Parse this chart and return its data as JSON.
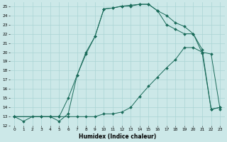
{
  "xlabel": "Humidex (Indice chaleur)",
  "bg_color": "#cce8e8",
  "grid_color": "#aad4d4",
  "line_color": "#1a6b5a",
  "xlim": [
    -0.5,
    23.5
  ],
  "ylim": [
    12,
    25.4
  ],
  "xticks": [
    0,
    1,
    2,
    3,
    4,
    5,
    6,
    7,
    8,
    9,
    10,
    11,
    12,
    13,
    14,
    15,
    16,
    17,
    18,
    19,
    20,
    21,
    22,
    23
  ],
  "yticks": [
    12,
    13,
    14,
    15,
    16,
    17,
    18,
    19,
    20,
    21,
    22,
    23,
    24,
    25
  ],
  "curve1_x": [
    0,
    1,
    2,
    3,
    4,
    5,
    6,
    7,
    8,
    9,
    10,
    11,
    12,
    13,
    14,
    15,
    16,
    17,
    18,
    19,
    20,
    21,
    22,
    23
  ],
  "curve1_y": [
    13,
    12.5,
    13,
    13,
    13,
    12.5,
    13.3,
    17.5,
    20.0,
    21.7,
    24.7,
    24.8,
    25.0,
    25.0,
    25.2,
    25.2,
    24.5,
    24.0,
    23.2,
    22.8,
    22.0,
    20.3,
    13.8,
    14.0
  ],
  "curve2_x": [
    0,
    3,
    4,
    5,
    6,
    7,
    8,
    9,
    10,
    11,
    12,
    13,
    14,
    15,
    16,
    17,
    18,
    19,
    20,
    21,
    22,
    23
  ],
  "curve2_y": [
    13,
    13,
    13,
    13,
    15.0,
    17.5,
    19.8,
    21.7,
    24.7,
    24.8,
    25.0,
    25.1,
    25.2,
    25.2,
    24.5,
    23.0,
    22.5,
    22.0,
    22.0,
    19.9,
    13.8,
    14.0
  ],
  "curve3_x": [
    0,
    3,
    4,
    5,
    6,
    7,
    8,
    9,
    10,
    11,
    12,
    13,
    14,
    15,
    16,
    17,
    18,
    19,
    20,
    21,
    22,
    23
  ],
  "curve3_y": [
    13,
    13,
    13,
    13,
    13,
    13,
    13,
    13,
    13.3,
    13.3,
    13.5,
    14.0,
    15.2,
    16.3,
    17.3,
    18.3,
    19.2,
    20.5,
    20.5,
    20.0,
    19.8,
    13.8
  ],
  "markersize": 2.0,
  "linewidth": 0.7
}
